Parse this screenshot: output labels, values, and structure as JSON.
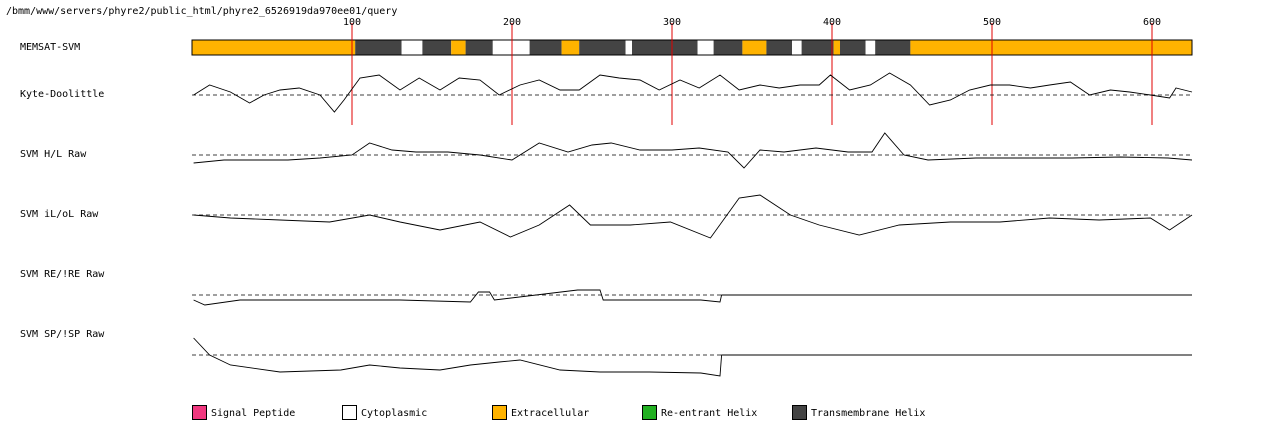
{
  "path": "/bmm/www/servers/phyre2/public_html/phyre2_6526919da970ee01/query",
  "chart_data": [
    {
      "type": "topology",
      "label": "MEMSAT-SVM",
      "xlim": [
        0,
        625
      ],
      "xticks": [
        100,
        200,
        300,
        400,
        500,
        600
      ],
      "legend": [
        {
          "name": "Signal Peptide",
          "color": "#f0387f"
        },
        {
          "name": "Cytoplasmic",
          "color": "#ffffff"
        },
        {
          "name": "Extracellular",
          "color": "#ffb300"
        },
        {
          "name": "Re-entrant Helix",
          "color": "#22b022"
        },
        {
          "name": "Transmembrane Helix",
          "color": "#444444"
        }
      ],
      "segments": [
        {
          "start": 0,
          "end": 102,
          "class": "Extracellular"
        },
        {
          "start": 102,
          "end": 131,
          "class": "Transmembrane Helix"
        },
        {
          "start": 131,
          "end": 144,
          "class": "Cytoplasmic"
        },
        {
          "start": 144,
          "end": 162,
          "class": "Transmembrane Helix"
        },
        {
          "start": 162,
          "end": 171,
          "class": "Extracellular"
        },
        {
          "start": 171,
          "end": 188,
          "class": "Transmembrane Helix"
        },
        {
          "start": 188,
          "end": 211,
          "class": "Cytoplasmic"
        },
        {
          "start": 211,
          "end": 231,
          "class": "Transmembrane Helix"
        },
        {
          "start": 231,
          "end": 242,
          "class": "Extracellular"
        },
        {
          "start": 242,
          "end": 271,
          "class": "Transmembrane Helix"
        },
        {
          "start": 271,
          "end": 275,
          "class": "Cytoplasmic"
        },
        {
          "start": 275,
          "end": 316,
          "class": "Transmembrane Helix"
        },
        {
          "start": 316,
          "end": 326,
          "class": "Cytoplasmic"
        },
        {
          "start": 326,
          "end": 344,
          "class": "Transmembrane Helix"
        },
        {
          "start": 344,
          "end": 359,
          "class": "Extracellular"
        },
        {
          "start": 359,
          "end": 375,
          "class": "Transmembrane Helix"
        },
        {
          "start": 375,
          "end": 381,
          "class": "Cytoplasmic"
        },
        {
          "start": 381,
          "end": 401,
          "class": "Transmembrane Helix"
        },
        {
          "start": 401,
          "end": 405,
          "class": "Extracellular"
        },
        {
          "start": 405,
          "end": 421,
          "class": "Transmembrane Helix"
        },
        {
          "start": 421,
          "end": 427,
          "class": "Cytoplasmic"
        },
        {
          "start": 427,
          "end": 449,
          "class": "Transmembrane Helix"
        },
        {
          "start": 449,
          "end": 625,
          "class": "Extracellular"
        }
      ]
    },
    {
      "type": "line",
      "label": "Kyte-Doolittle",
      "ylim": [
        -3,
        3
      ],
      "x": [
        1,
        11,
        24,
        36,
        45,
        55,
        67,
        80,
        89,
        95,
        105,
        117,
        130,
        142,
        155,
        167,
        180,
        192,
        205,
        217,
        230,
        242,
        255,
        267,
        280,
        292,
        305,
        317,
        330,
        342,
        355,
        367,
        380,
        392,
        399,
        411,
        424,
        436,
        449,
        461,
        474,
        486,
        499,
        511,
        524,
        536,
        549,
        561,
        574,
        586,
        599,
        611,
        615,
        625
      ],
      "values": [
        0,
        1,
        0.3,
        -0.8,
        0,
        0.5,
        0.7,
        0,
        -1.7,
        -0.5,
        1.7,
        2,
        0.5,
        1.7,
        0.5,
        1.7,
        1.5,
        0,
        1,
        1.5,
        0.5,
        0.5,
        2,
        1.7,
        1.5,
        0.5,
        1.5,
        0.7,
        2,
        0.5,
        1,
        0.7,
        1,
        1,
        2,
        0.5,
        1,
        2.2,
        1,
        -1,
        -0.5,
        0.5,
        1,
        1,
        0.7,
        1,
        1.3,
        0,
        0.5,
        0.3,
        0,
        -0.3,
        0.7,
        0.3
      ]
    },
    {
      "type": "line",
      "label": "SVM H/L Raw",
      "ylim": [
        -3,
        3
      ],
      "x": [
        1,
        20,
        40,
        60,
        80,
        100,
        111,
        125,
        140,
        160,
        180,
        200,
        217,
        235,
        250,
        262,
        280,
        300,
        317,
        335,
        345,
        355,
        370,
        390,
        410,
        425,
        433,
        445,
        460,
        490,
        520,
        550,
        580,
        610,
        625
      ],
      "values": [
        -0.8,
        -0.5,
        -0.5,
        -0.5,
        -0.3,
        0,
        1.2,
        0.5,
        0.3,
        0.3,
        0,
        -0.5,
        1.2,
        0.3,
        1,
        1.2,
        0.5,
        0.5,
        0.7,
        0.3,
        -1.3,
        0.5,
        0.3,
        0.7,
        0.3,
        0.3,
        2.2,
        0,
        -0.5,
        -0.3,
        -0.3,
        -0.3,
        -0.2,
        -0.3,
        -0.5
      ]
    },
    {
      "type": "line",
      "label": "SVM iL/oL Raw",
      "ylim": [
        -3,
        3
      ],
      "x": [
        1,
        24,
        55,
        86,
        111,
        130,
        155,
        180,
        199,
        217,
        236,
        249,
        274,
        299,
        324,
        342,
        355,
        374,
        392,
        417,
        442,
        474,
        505,
        536,
        567,
        599,
        611,
        625
      ],
      "values": [
        0,
        -0.3,
        -0.5,
        -0.7,
        0,
        -0.7,
        -1.5,
        -0.7,
        -2.2,
        -1,
        1,
        -1,
        -1,
        -0.7,
        -2.3,
        1.7,
        2,
        0,
        -1,
        -2,
        -1,
        -0.7,
        -0.7,
        -0.3,
        -0.5,
        -0.3,
        -1.5,
        0
      ]
    },
    {
      "type": "line",
      "label": "SVM RE/!RE Raw",
      "ylim": [
        -3,
        3
      ],
      "x": [
        1,
        8,
        30,
        68,
        130,
        174,
        179,
        186,
        189,
        241,
        255,
        257,
        318,
        330,
        331,
        625
      ],
      "values": [
        -0.5,
        -1,
        -0.5,
        -0.5,
        -0.5,
        -0.7,
        0.3,
        0.3,
        -0.5,
        0.5,
        0.5,
        -0.5,
        -0.5,
        -0.7,
        0,
        0
      ]
    },
    {
      "type": "line",
      "label": "SVM SP/!SP Raw",
      "ylim": [
        -3,
        3
      ],
      "x": [
        1,
        11,
        24,
        55,
        93,
        111,
        130,
        155,
        174,
        192,
        205,
        230,
        255,
        286,
        318,
        330,
        331,
        625
      ],
      "values": [
        1.7,
        0,
        -1,
        -1.7,
        -1.5,
        -1,
        -1.3,
        -1.5,
        -1,
        -0.7,
        -0.5,
        -1.5,
        -1.7,
        -1.7,
        -1.8,
        -2.1,
        0,
        0
      ]
    }
  ]
}
